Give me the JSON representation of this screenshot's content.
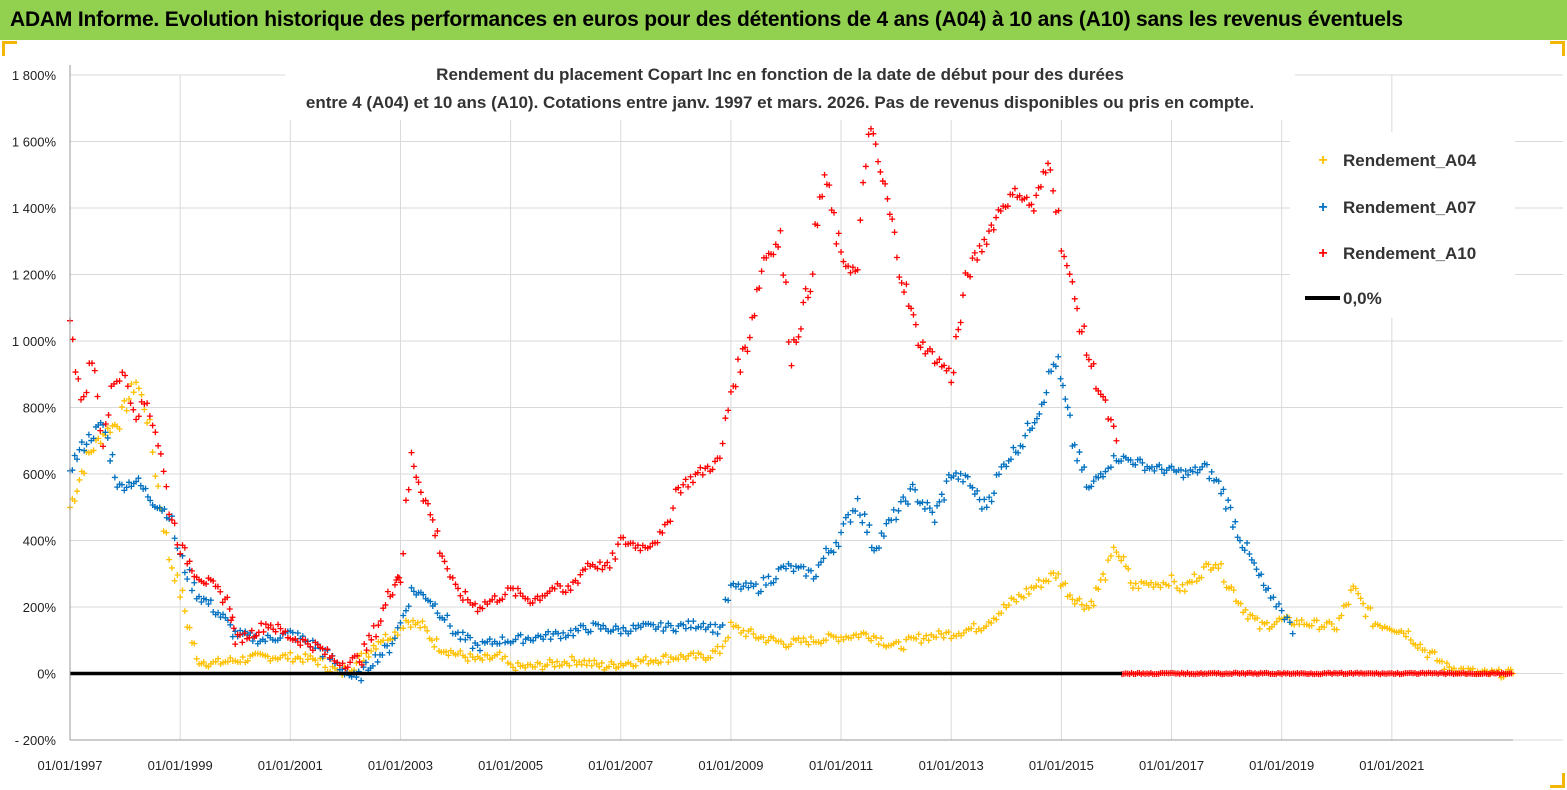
{
  "banner": {
    "title": "ADAM Informe. Evolution historique des performances en euros pour des détentions de 4 ans (A04) à 10 ans (A10) sans les revenus éventuels"
  },
  "colors": {
    "banner": "#92d050",
    "a04": "#ffc000",
    "a07": "#0070c0",
    "a10": "#ff0000",
    "zero": "#000000",
    "grid": "#d9d9d9",
    "corner": "#f2b705"
  },
  "chart_data": {
    "type": "scatter",
    "title": [
      "Rendement du placement Copart Inc en fonction de la date de début pour des durées",
      "entre 4 (A04) et 10 ans (A10). Cotations entre janv. 1997 et mars. 2026. Pas de revenus disponibles ou pris en compte."
    ],
    "x_unit": "year",
    "xlim": [
      1997,
      2023.2
    ],
    "ylim": [
      -200,
      1800
    ],
    "y_ticks": [
      -200,
      0,
      200,
      400,
      600,
      800,
      1000,
      1200,
      1400,
      1600,
      1800
    ],
    "y_tick_labels": [
      "- 200%",
      "0%",
      "200%",
      "400%",
      "600%",
      "800%",
      "1 000%",
      "1 200%",
      "1 400%",
      "1 600%",
      "1 800%"
    ],
    "x_ticks": [
      1997,
      1999,
      2001,
      2003,
      2005,
      2007,
      2009,
      2011,
      2013,
      2015,
      2017,
      2019,
      2021
    ],
    "x_tick_labels": [
      "01/01/1997",
      "01/01/1999",
      "01/01/2001",
      "01/01/2003",
      "01/01/2005",
      "01/01/2007",
      "01/01/2009",
      "01/01/2011",
      "01/01/2013",
      "01/01/2015",
      "01/01/2017",
      "01/01/2019",
      "01/01/2021"
    ],
    "grid": true,
    "legend": {
      "position": "top-right",
      "entries": [
        "Rendement_A04",
        "Rendement_A07",
        "Rendement_A10",
        "0,0%"
      ]
    },
    "series": [
      {
        "name": "Rendement_A04",
        "marker": "+",
        "x": [
          1997.0,
          1997.3,
          1997.6,
          1997.9,
          1998.2,
          1998.4,
          1998.6,
          1998.8,
          1999.0,
          1999.3,
          1999.6,
          2000.0,
          2000.5,
          2001.0,
          2001.5,
          2001.9,
          2002.2,
          2002.6,
          2002.9,
          2003.1,
          2003.4,
          2003.7,
          2004.0,
          2004.4,
          2004.8,
          2005.0,
          2005.4,
          2005.8,
          2006.2,
          2006.7,
          2007.0,
          2007.5,
          2008.0,
          2008.5,
          2008.8,
          2009.0,
          2009.5,
          2010.0,
          2010.5,
          2011.0,
          2011.5,
          2012.0,
          2012.5,
          2013.0,
          2013.5,
          2014.0,
          2014.5,
          2014.9,
          2015.2,
          2015.5,
          2015.8,
          2016.0,
          2016.3,
          2016.5,
          2016.8,
          2017.0,
          2017.2,
          2017.5,
          2017.8,
          2018.0,
          2018.3,
          2018.6,
          2019.0,
          2019.5,
          2020.0,
          2020.3,
          2020.7,
          2021.0,
          2021.3,
          2021.6,
          2022.0,
          2022.3,
          2022.6,
          2022.9,
          2023.2
        ],
        "y": [
          500,
          650,
          720,
          760,
          880,
          780,
          560,
          350,
          250,
          40,
          30,
          40,
          50,
          50,
          40,
          0,
          30,
          100,
          120,
          160,
          140,
          80,
          60,
          40,
          50,
          20,
          20,
          30,
          40,
          20,
          30,
          40,
          50,
          50,
          70,
          140,
          110,
          90,
          100,
          110,
          120,
          80,
          110,
          120,
          140,
          200,
          260,
          300,
          230,
          200,
          300,
          380,
          260,
          270,
          270,
          280,
          250,
          300,
          340,
          280,
          200,
          140,
          160,
          150,
          140,
          250,
          150,
          140,
          120,
          70,
          20,
          10,
          0,
          0,
          0
        ]
      },
      {
        "name": "Rendement_A07",
        "marker": "+",
        "x": [
          1997.0,
          1997.3,
          1997.6,
          1997.9,
          1998.2,
          1998.5,
          1998.8,
          1999.0,
          1999.3,
          1999.6,
          2000.0,
          2000.5,
          2001.0,
          2001.5,
          2001.9,
          2002.2,
          2002.5,
          2002.8,
          2003.0,
          2003.2,
          2003.5,
          2003.8,
          2004.0,
          2004.4,
          2004.8,
          2005.0,
          2005.5,
          2006.0,
          2006.5,
          2007.0,
          2007.5,
          2008.0,
          2008.5,
          2008.8,
          2009.0,
          2009.5,
          2010.0,
          2010.5,
          2011.0,
          2011.3,
          2011.6,
          2012.0,
          2012.3,
          2012.7,
          2013.0,
          2013.3,
          2013.6,
          2014.0,
          2014.3,
          2014.6,
          2014.9,
          2015.2,
          2015.5,
          2015.8,
          2016.0,
          2016.3,
          2016.6,
          2017.0,
          2017.3,
          2017.6,
          2017.9,
          2018.2,
          2018.5,
          2018.8,
          2019.0,
          2019.2
        ],
        "y": [
          620,
          700,
          750,
          560,
          580,
          520,
          480,
          350,
          240,
          200,
          120,
          100,
          120,
          80,
          20,
          -20,
          40,
          80,
          150,
          250,
          230,
          170,
          120,
          80,
          100,
          100,
          110,
          120,
          140,
          130,
          140,
          140,
          150,
          130,
          260,
          260,
          320,
          300,
          420,
          520,
          380,
          480,
          550,
          470,
          600,
          580,
          500,
          640,
          700,
          800,
          950,
          700,
          550,
          620,
          650,
          640,
          620,
          610,
          600,
          620,
          560,
          430,
          320,
          220,
          200,
          120
        ]
      },
      {
        "name": "Rendement_A10",
        "marker": "+",
        "x": [
          1997.0,
          1997.2,
          1997.4,
          1997.6,
          1997.8,
          1998.0,
          1998.2,
          1998.4,
          1998.6,
          1998.8,
          1999.0,
          1999.3,
          1999.6,
          1999.9,
          2000.0,
          2000.3,
          2000.6,
          2001.0,
          2001.5,
          2001.8,
          2002.0,
          2002.3,
          2002.6,
          2002.9,
          2003.0,
          2003.2,
          2003.5,
          2003.8,
          2004.0,
          2004.4,
          2004.8,
          2005.0,
          2005.4,
          2005.8,
          2006.0,
          2006.4,
          2006.8,
          2007.0,
          2007.4,
          2007.8,
          2008.0,
          2008.4,
          2008.8,
          2009.0,
          2009.3,
          2009.6,
          2009.9,
          2010.1,
          2010.4,
          2010.7,
          2011.0,
          2011.3,
          2011.5,
          2011.8,
          2012.1,
          2012.4,
          2012.7,
          2013.0,
          2013.3,
          2013.6,
          2013.9,
          2014.2,
          2014.5,
          2014.8,
          2015.0,
          2015.2,
          2015.5,
          2015.8,
          2016.0
        ],
        "y": [
          1100,
          800,
          950,
          700,
          880,
          900,
          780,
          820,
          700,
          500,
          380,
          300,
          260,
          210,
          100,
          120,
          150,
          110,
          80,
          40,
          30,
          50,
          150,
          280,
          300,
          650,
          500,
          340,
          250,
          200,
          230,
          250,
          220,
          260,
          240,
          330,
          320,
          400,
          380,
          420,
          550,
          600,
          640,
          850,
          1000,
          1250,
          1300,
          960,
          1150,
          1500,
          1250,
          1200,
          1650,
          1450,
          1200,
          1000,
          950,
          900,
          1200,
          1300,
          1400,
          1450,
          1400,
          1550,
          1300,
          1150,
          950,
          800,
          700
        ]
      },
      {
        "name": "Rendement_A10_zero_tail",
        "marker": "+",
        "x": [
          2016.1,
          2023.2
        ],
        "y": [
          0,
          0
        ],
        "dense": true
      },
      {
        "name": "0,0%",
        "line": true,
        "x": [
          1997.0,
          2016.1
        ],
        "y": [
          0,
          0
        ]
      }
    ]
  }
}
